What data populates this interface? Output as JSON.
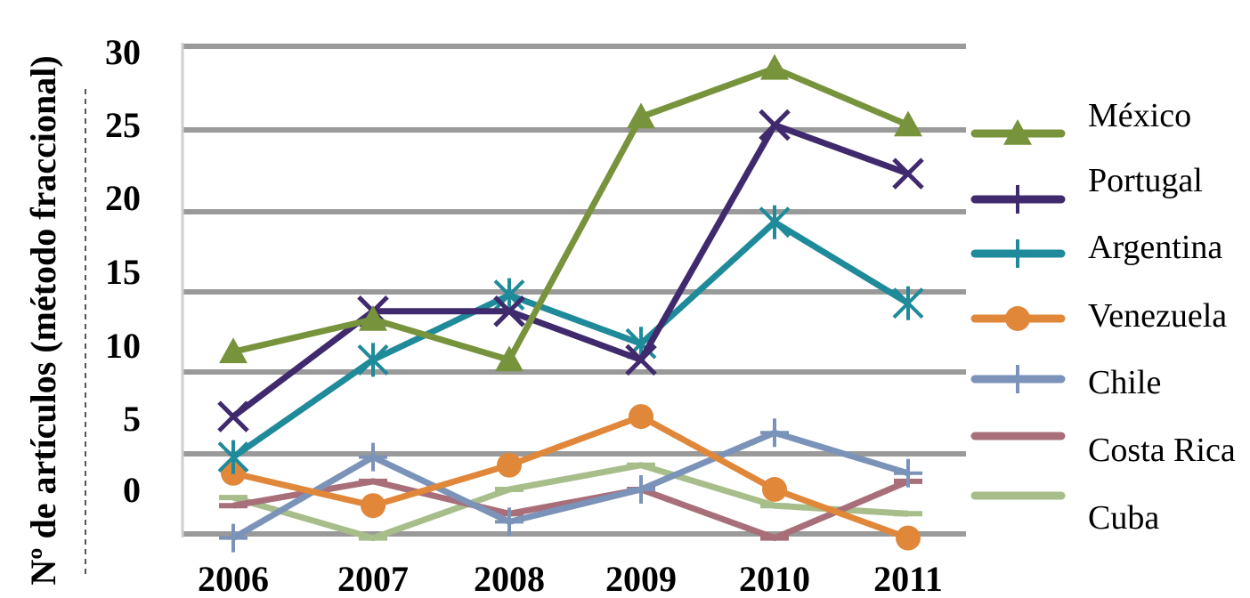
{
  "chart_data": {
    "type": "line",
    "title": "",
    "xlabel": "",
    "ylabel": "Nº de artículos (método fraccional)",
    "x": [
      "2006",
      "2007",
      "2008",
      "2009",
      "2010",
      "2011"
    ],
    "yticks": [
      "0",
      "5",
      "10",
      "15",
      "20",
      "25",
      "30"
    ],
    "ylim": [
      -3,
      30
    ],
    "grid": true,
    "legend": "right",
    "series": [
      {
        "name": "México",
        "color": "#77933c",
        "marker": "triangle",
        "values": [
          8.5,
          10.5,
          8,
          23,
          26,
          22.5
        ]
      },
      {
        "name": "Portugal",
        "color": "#3f2a6e",
        "marker": "x",
        "values": [
          4.5,
          11,
          11,
          8,
          22.5,
          19.5
        ]
      },
      {
        "name": "Argentina",
        "color": "#1f8a99",
        "marker": "star",
        "values": [
          2,
          8,
          12,
          9,
          16.5,
          11.5
        ]
      },
      {
        "name": "Venezuela",
        "color": "#e0873a",
        "marker": "circle",
        "values": [
          1,
          -1,
          1.5,
          4.5,
          0,
          -3
        ]
      },
      {
        "name": "Chile",
        "color": "#7b93b8",
        "marker": "plus",
        "values": [
          -3,
          2,
          -2,
          0,
          3.5,
          1
        ]
      },
      {
        "name": "Costa Rica",
        "color": "#a86f7a",
        "marker": "dash",
        "values": [
          -1,
          0.5,
          -1.5,
          0,
          -3,
          0.5
        ]
      },
      {
        "name": "Cuba",
        "color": "#a7bd8a",
        "marker": "dash",
        "values": [
          -0.5,
          -3,
          0,
          1.5,
          -1,
          -1.5
        ]
      }
    ]
  }
}
